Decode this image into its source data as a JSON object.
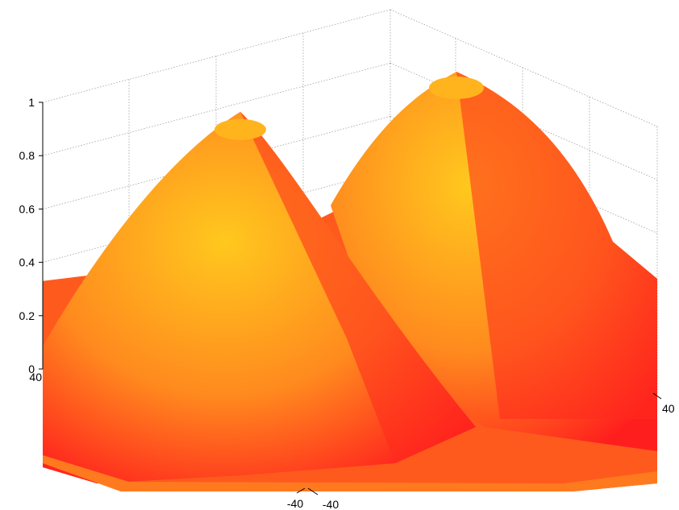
{
  "chart_data": {
    "type": "surface",
    "title": "",
    "xlabel": "",
    "ylabel": "",
    "zlabel": "",
    "grid": true,
    "colormap": "autumn",
    "colors": {
      "peak": "#ffc81e",
      "base": "#ff1e1e",
      "grid": "#a0a0a0",
      "axis": "#000000"
    },
    "zlim": [
      0,
      1
    ],
    "z_ticks": [
      {
        "value": 0,
        "label": "0"
      },
      {
        "value": 0.2,
        "label": "0.2"
      },
      {
        "value": 0.4,
        "label": "0.4"
      },
      {
        "value": 0.6,
        "label": "0.6"
      },
      {
        "value": 0.8,
        "label": "0.8"
      },
      {
        "value": 1,
        "label": "1"
      }
    ],
    "x_tick_labels": [
      "40",
      "-40"
    ],
    "y_tick_labels": [
      "-40",
      "40"
    ],
    "peaks": [
      {
        "name": "left",
        "height": 0.91
      },
      {
        "name": "right",
        "height": 1.0
      }
    ],
    "base_level": 0.33
  }
}
